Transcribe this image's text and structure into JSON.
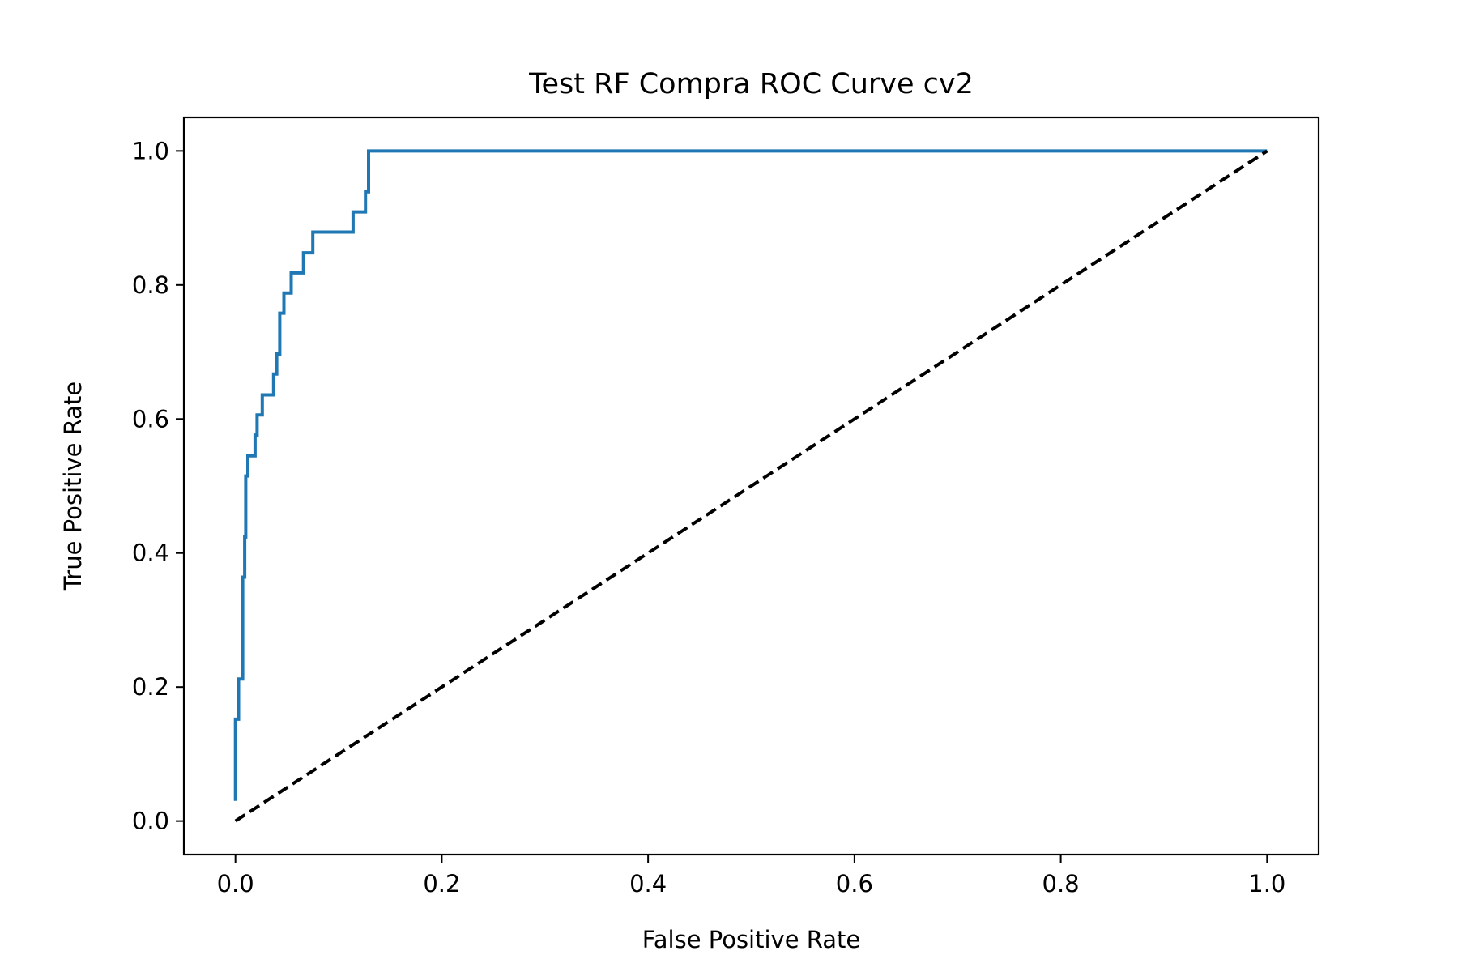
{
  "chart_data": {
    "type": "line",
    "title": "Test RF Compra ROC Curve cv2",
    "xlabel": "False Positive Rate",
    "ylabel": "True Positive Rate",
    "xlim": [
      -0.05,
      1.05
    ],
    "ylim": [
      -0.05,
      1.05
    ],
    "xticks": [
      "0.0",
      "0.2",
      "0.4",
      "0.6",
      "0.8",
      "1.0"
    ],
    "yticks": [
      "0.0",
      "0.2",
      "0.4",
      "0.6",
      "0.8",
      "1.0"
    ],
    "grid": false,
    "legend": "none",
    "series": [
      {
        "color": "#1f77b4",
        "style": "solid",
        "x": [
          0.0,
          0.0,
          0.003,
          0.003,
          0.007,
          0.007,
          0.009,
          0.009,
          0.01,
          0.01,
          0.012,
          0.012,
          0.013,
          0.013,
          0.019,
          0.019,
          0.021,
          0.021,
          0.026,
          0.026,
          0.037,
          0.037,
          0.04,
          0.04,
          0.043,
          0.043,
          0.047,
          0.047,
          0.054,
          0.054,
          0.066,
          0.066,
          0.075,
          0.075,
          0.114,
          0.114,
          0.126,
          0.126,
          0.129,
          0.129,
          1.0
        ],
        "y": [
          0.03,
          0.152,
          0.152,
          0.212,
          0.212,
          0.364,
          0.364,
          0.424,
          0.424,
          0.515,
          0.515,
          0.545,
          0.545,
          0.545,
          0.545,
          0.576,
          0.576,
          0.606,
          0.606,
          0.636,
          0.636,
          0.667,
          0.667,
          0.697,
          0.697,
          0.758,
          0.758,
          0.788,
          0.788,
          0.818,
          0.818,
          0.848,
          0.848,
          0.879,
          0.879,
          0.909,
          0.909,
          0.939,
          0.939,
          1.0,
          1.0
        ]
      },
      {
        "color": "#000000",
        "style": "dashed",
        "x": [
          0.0,
          1.0
        ],
        "y": [
          0.0,
          1.0
        ]
      }
    ]
  }
}
